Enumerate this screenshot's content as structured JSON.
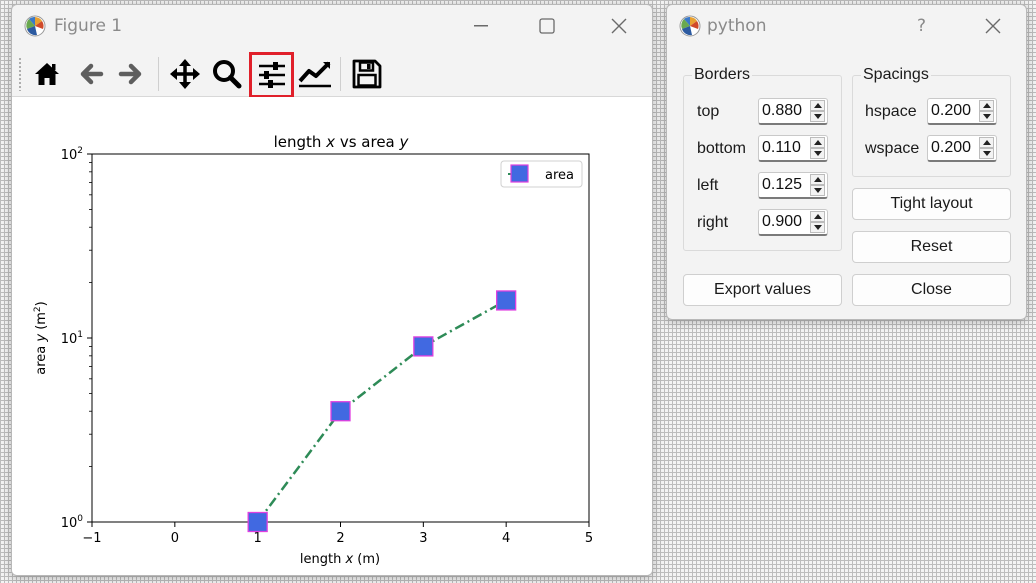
{
  "figure_window": {
    "title": "Figure 1",
    "toolbar": {
      "items": [
        {
          "name": "home-icon",
          "tooltip": "Home"
        },
        {
          "name": "back-icon",
          "tooltip": "Back"
        },
        {
          "name": "forward-icon",
          "tooltip": "Forward"
        },
        {
          "name": "pan-icon",
          "tooltip": "Pan"
        },
        {
          "name": "zoom-icon",
          "tooltip": "Zoom"
        },
        {
          "name": "configure-subplots-icon",
          "tooltip": "Configure subplots",
          "active": true
        },
        {
          "name": "edit-axis-icon",
          "tooltip": "Edit axis"
        },
        {
          "name": "save-icon",
          "tooltip": "Save"
        }
      ],
      "highlight_color": "#e0202a"
    }
  },
  "chart_data": {
    "type": "line",
    "title": "length x vs area y",
    "title_parts": {
      "a": "length ",
      "b": "x",
      "c": " vs area ",
      "d": "y"
    },
    "xlabel": "length x (m)",
    "xlabel_parts": {
      "a": "length ",
      "b": "x",
      "c": " (m)"
    },
    "ylabel": "area y (m²)",
    "ylabel_parts": {
      "a": "area ",
      "b": "y",
      "c": " (m",
      "d": "2",
      "e": ")"
    },
    "xlim": [
      -1,
      5
    ],
    "ylim": [
      1,
      100
    ],
    "yscale": "log",
    "xticks": [
      "−1",
      "0",
      "1",
      "2",
      "3",
      "4",
      "5"
    ],
    "xtick_values": [
      -1,
      0,
      1,
      2,
      3,
      4,
      5
    ],
    "yticks": [
      {
        "value": 1,
        "base": "10",
        "exp": "0"
      },
      {
        "value": 10,
        "base": "10",
        "exp": "1"
      },
      {
        "value": 100,
        "base": "10",
        "exp": "2"
      }
    ],
    "series": [
      {
        "name": "area",
        "x": [
          1,
          2,
          3,
          4
        ],
        "y": [
          1,
          4,
          9,
          16
        ],
        "line_color": "#2e8b57",
        "line_style": "dashdot",
        "marker": "square",
        "marker_face": "#4169e1",
        "marker_edge": "#e040e0"
      }
    ],
    "legend": {
      "placement": "top-right",
      "labels": [
        "area"
      ]
    },
    "grid": false
  },
  "dialog": {
    "title": "python",
    "help_glyph": "?",
    "borders": {
      "title": "Borders",
      "rows": [
        {
          "label": "top",
          "value": "0.880"
        },
        {
          "label": "bottom",
          "value": "0.110"
        },
        {
          "label": "left",
          "value": "0.125"
        },
        {
          "label": "right",
          "value": "0.900"
        }
      ]
    },
    "spacings": {
      "title": "Spacings",
      "rows": [
        {
          "label": "hspace",
          "value": "0.200"
        },
        {
          "label": "wspace",
          "value": "0.200"
        }
      ]
    },
    "buttons": {
      "tight_layout": "Tight layout",
      "reset": "Reset",
      "export_values": "Export values",
      "close": "Close"
    }
  }
}
